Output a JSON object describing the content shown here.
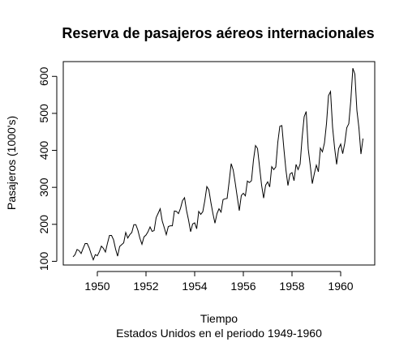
{
  "chart_data": {
    "type": "line",
    "title": "Reserva de pasajeros aéreos internacionales",
    "xlabel": "Tiempo",
    "subtitle": "Estados Unidos en el periodo 1949-1960",
    "ylabel": "Pasajeros (1000's)",
    "xlim": [
      1948.6,
      1961.4
    ],
    "ylim": [
      90,
      640
    ],
    "x_ticks": [
      1950,
      1952,
      1954,
      1956,
      1958,
      1960
    ],
    "x_tick_labels": [
      "1950",
      "1952",
      "1954",
      "1956",
      "1958",
      "1960"
    ],
    "y_ticks": [
      100,
      200,
      300,
      400,
      500,
      600
    ],
    "y_tick_labels": [
      "100",
      "200",
      "300",
      "400",
      "500",
      "600"
    ],
    "grid": false,
    "legend": "none",
    "line_color": "#000000",
    "x_start": 1949.0,
    "x_step": 0.0833333,
    "series": [
      {
        "values": [
          112,
          118,
          132,
          129,
          121,
          135,
          148,
          148,
          136,
          119,
          104,
          118,
          115,
          126,
          141,
          135,
          125,
          149,
          170,
          170,
          158,
          133,
          114,
          140,
          145,
          150,
          178,
          163,
          172,
          178,
          199,
          199,
          184,
          162,
          146,
          166,
          171,
          180,
          193,
          181,
          183,
          218,
          230,
          242,
          209,
          191,
          172,
          194,
          196,
          196,
          236,
          235,
          229,
          243,
          264,
          272,
          237,
          211,
          180,
          201,
          204,
          188,
          235,
          227,
          234,
          264,
          302,
          293,
          259,
          229,
          203,
          229,
          242,
          233,
          267,
          269,
          270,
          315,
          364,
          347,
          312,
          274,
          237,
          278,
          284,
          277,
          317,
          313,
          318,
          374,
          413,
          405,
          355,
          306,
          271,
          306,
          315,
          301,
          356,
          348,
          355,
          422,
          465,
          467,
          404,
          347,
          305,
          336,
          340,
          318,
          362,
          348,
          363,
          435,
          491,
          505,
          404,
          359,
          310,
          337,
          360,
          342,
          406,
          396,
          420,
          472,
          548,
          559,
          463,
          407,
          362,
          405,
          417,
          391,
          419,
          461,
          472,
          535,
          622,
          606,
          508,
          461,
          390,
          432
        ]
      }
    ]
  }
}
